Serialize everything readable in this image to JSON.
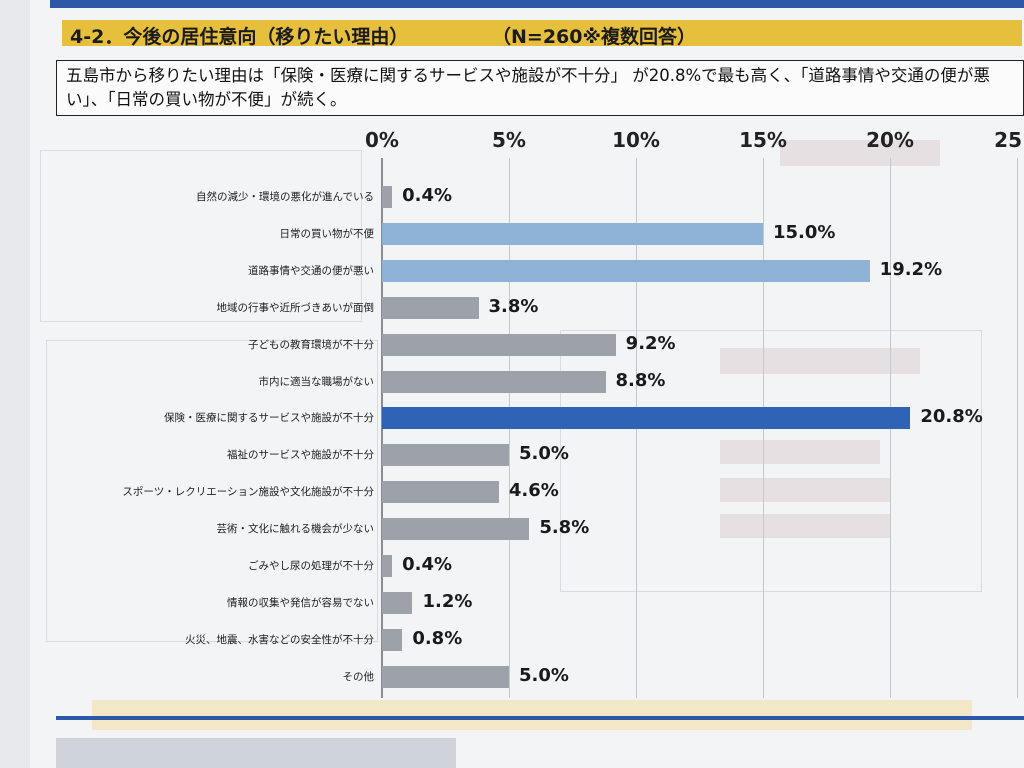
{
  "heading": {
    "title": "4-2．今後の居住意向（移りたい理由）",
    "n_note": "（N=260※複数回答）"
  },
  "summary": "五島市から移りたい理由は「保険・医療に関するサービスや施設が不十分」 が20.8%で最も高く、「道路事情や交通の便が悪い」、「日常の買い物が不便」が続く。",
  "colors": {
    "default_bar": "#9da1aa",
    "secondary_bar": "#8fb3d6",
    "highlight_bar": "#2e63b6"
  },
  "chart_data": {
    "type": "bar",
    "orientation": "horizontal",
    "unit": "%",
    "xlim": [
      0,
      25
    ],
    "xticks": [
      "0%",
      "5%",
      "10%",
      "15%",
      "20%",
      "25"
    ],
    "categories": [
      "自然の減少・環境の悪化が進んでいる",
      "日常の買い物が不便",
      "道路事情や交通の便が悪い",
      "地域の行事や近所づきあいが面倒",
      "子どもの教育環境が不十分",
      "市内に適当な職場がない",
      "保険・医療に関するサービスや施設が不十分",
      "福祉のサービスや施設が不十分",
      "スポーツ・レクリエーション施設や文化施設が不十分",
      "芸術・文化に触れる機会が少ない",
      "ごみやし尿の処理が不十分",
      "情報の収集や発信が容易でない",
      "火災、地震、水害などの安全性が不十分",
      "その他"
    ],
    "values": [
      0.4,
      15.0,
      19.2,
      3.8,
      9.2,
      8.8,
      20.8,
      5.0,
      4.6,
      5.8,
      0.4,
      1.2,
      0.8,
      5.0
    ],
    "value_labels": [
      "0.4%",
      "15.0%",
      "19.2%",
      "3.8%",
      "9.2%",
      "8.8%",
      "20.8%",
      "5.0%",
      "4.6%",
      "5.8%",
      "0.4%",
      "1.2%",
      "0.8%",
      "5.0%"
    ],
    "bar_styles": [
      "gray",
      "light",
      "light",
      "gray",
      "gray",
      "gray",
      "dark",
      "gray",
      "gray",
      "gray",
      "gray",
      "gray",
      "gray",
      "gray"
    ]
  }
}
